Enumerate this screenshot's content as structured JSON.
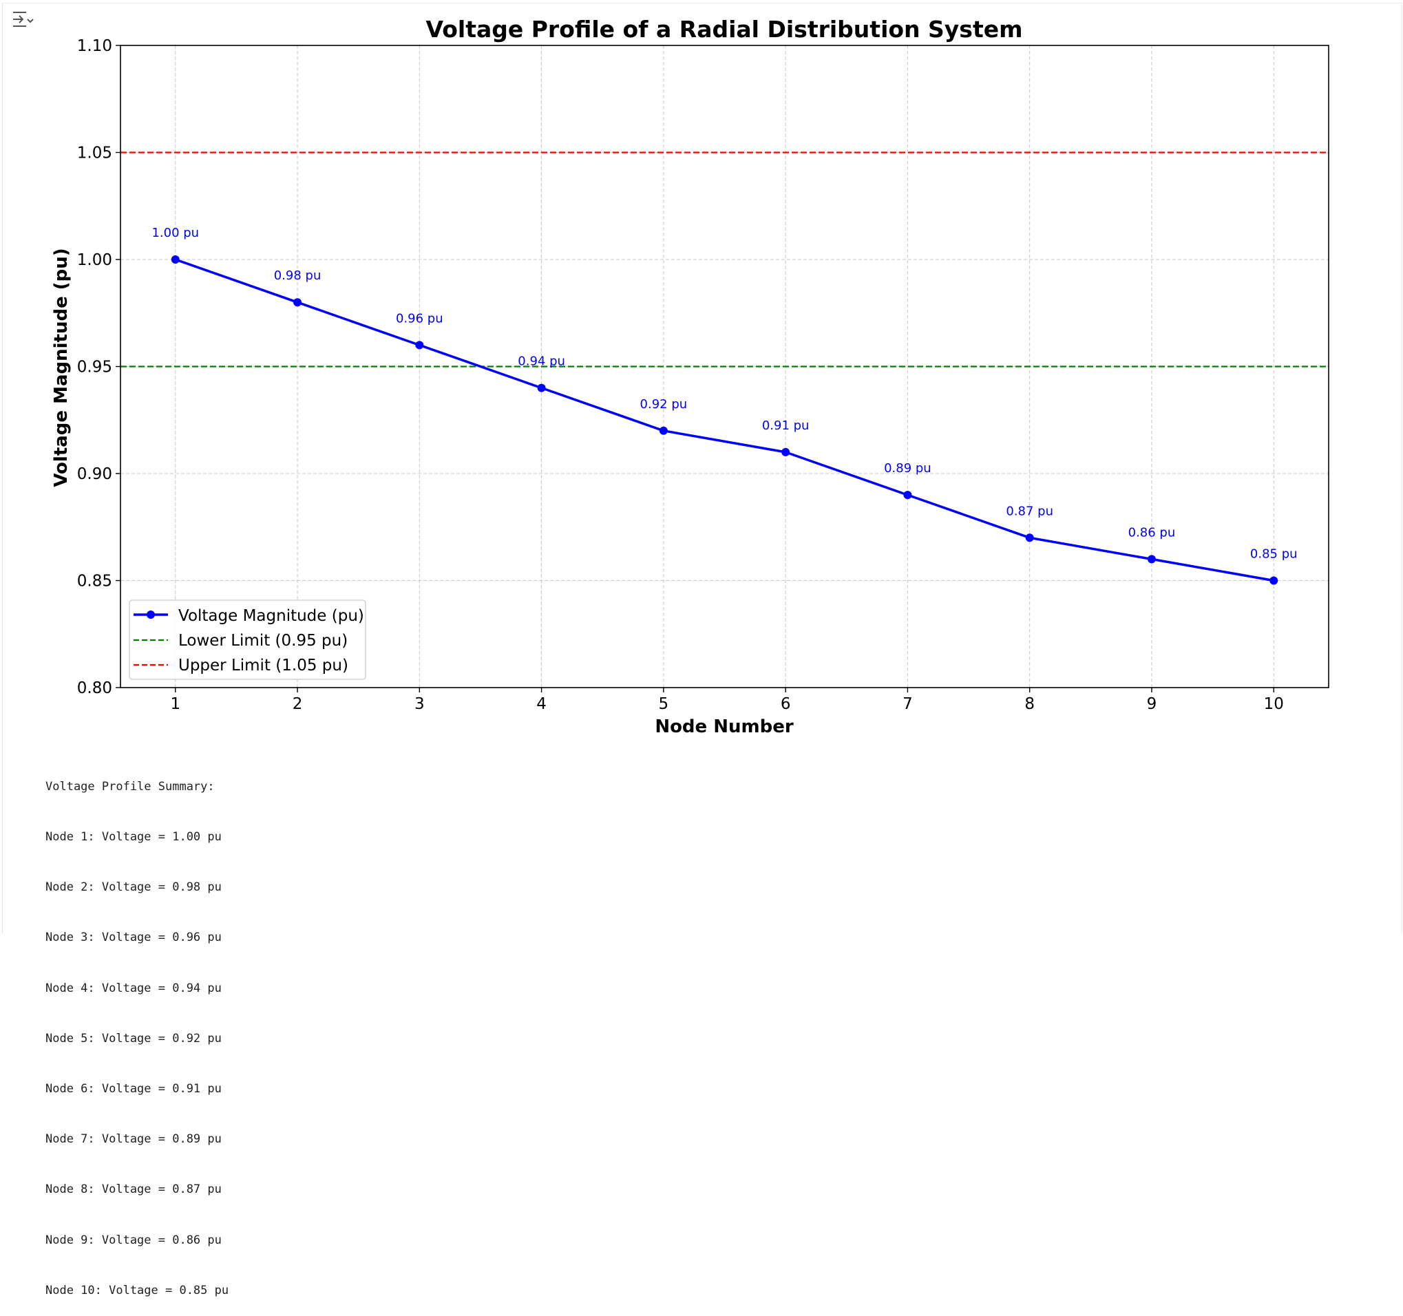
{
  "toolbar": {
    "output_toggle_icon": "output-collapse-icon"
  },
  "colors": {
    "series": "#0000ff",
    "lower_limit": "#008000",
    "upper_limit": "#ff0000",
    "grid": "#c8c8c8",
    "text": "#000000"
  },
  "chart_data": {
    "type": "line",
    "title": "Voltage Profile of a Radial Distribution System",
    "xlabel": "Node Number",
    "ylabel": "Voltage Magnitude (pu)",
    "x": [
      1,
      2,
      3,
      4,
      5,
      6,
      7,
      8,
      9,
      10
    ],
    "xticks": [
      "1",
      "2",
      "3",
      "4",
      "5",
      "6",
      "7",
      "8",
      "9",
      "10"
    ],
    "xlim": [
      0.55,
      10.45
    ],
    "ylim": [
      0.8,
      1.1
    ],
    "yticks": [
      "0.80",
      "0.85",
      "0.90",
      "0.95",
      "1.00",
      "1.05",
      "1.10"
    ],
    "grid": true,
    "legend_position": "lower-left",
    "series": [
      {
        "name": "Voltage Magnitude (pu)",
        "style": "solid line with circle markers",
        "color": "#0000ff",
        "values": [
          1.0,
          0.98,
          0.96,
          0.94,
          0.92,
          0.91,
          0.89,
          0.87,
          0.86,
          0.85
        ],
        "data_labels": [
          "1.00 pu",
          "0.98 pu",
          "0.96 pu",
          "0.94 pu",
          "0.92 pu",
          "0.91 pu",
          "0.89 pu",
          "0.87 pu",
          "0.86 pu",
          "0.85 pu"
        ]
      },
      {
        "name": "Lower Limit (0.95 pu)",
        "style": "dashed horizontal line",
        "color": "#008000",
        "y": 0.95
      },
      {
        "name": "Upper Limit (1.05 pu)",
        "style": "dashed horizontal line",
        "color": "#ff0000",
        "y": 1.05
      }
    ]
  },
  "summary": {
    "heading": "Voltage Profile Summary:",
    "lines": [
      "Node 1: Voltage = 1.00 pu",
      "Node 2: Voltage = 0.98 pu",
      "Node 3: Voltage = 0.96 pu",
      "Node 4: Voltage = 0.94 pu",
      "Node 5: Voltage = 0.92 pu",
      "Node 6: Voltage = 0.91 pu",
      "Node 7: Voltage = 0.89 pu",
      "Node 8: Voltage = 0.87 pu",
      "Node 9: Voltage = 0.86 pu",
      "Node 10: Voltage = 0.85 pu"
    ]
  }
}
